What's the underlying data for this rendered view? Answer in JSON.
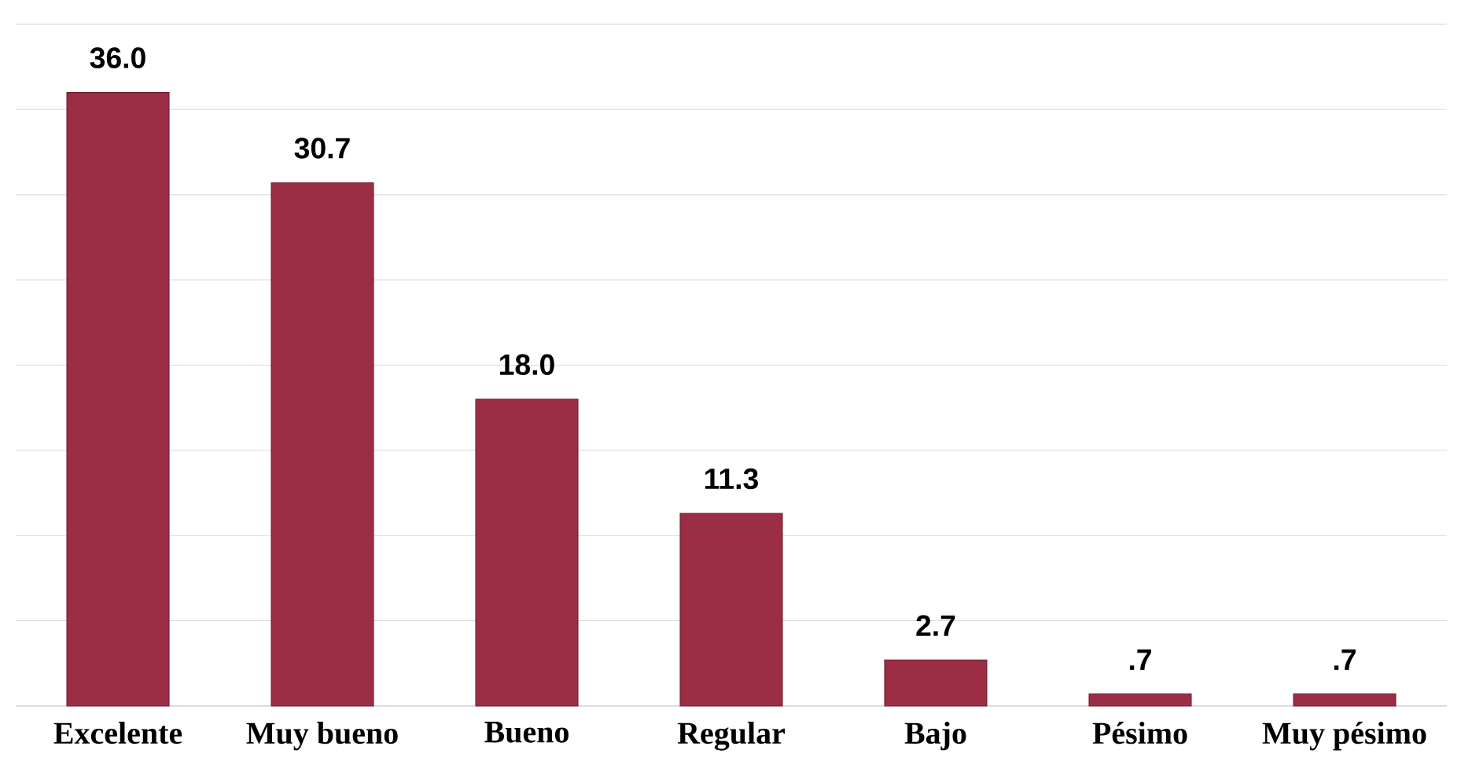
{
  "chart_data": {
    "type": "bar",
    "categories": [
      "Excelente",
      "Muy bueno",
      "Bueno",
      "Regular",
      "Bajo",
      "Pésimo",
      "Muy pésimo"
    ],
    "values": [
      36.0,
      30.7,
      18.0,
      11.3,
      2.7,
      0.7,
      0.7
    ],
    "value_labels": [
      "36.0",
      "30.7",
      "18.0",
      "11.3",
      "2.7",
      ".7",
      ".7"
    ],
    "color": "#9b2d45",
    "grid": "y",
    "tick_labels": "x"
  }
}
